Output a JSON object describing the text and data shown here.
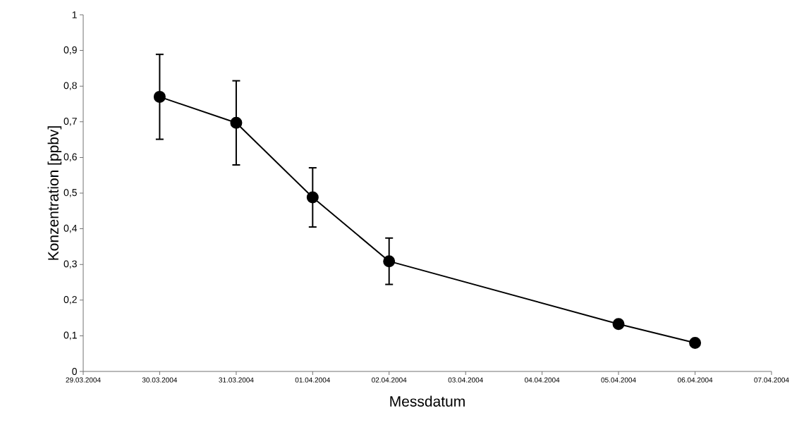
{
  "chart_data": {
    "type": "line",
    "xlabel": "Messdatum",
    "ylabel": "Konzentration [ppbv]",
    "x": [
      "2004-03-30",
      "2004-03-31",
      "2004-04-01",
      "2004-04-02",
      "2004-04-05",
      "2004-04-06"
    ],
    "values": [
      0.77,
      0.697,
      0.488,
      0.309,
      0.133,
      0.08
    ],
    "errors": [
      0.119,
      0.118,
      0.083,
      0.065,
      null,
      null
    ],
    "color": "#000000",
    "marker": "circle",
    "line_style": "solid",
    "grid": false,
    "xlim": [
      "2004-03-29",
      "2004-04-07"
    ],
    "xticks": [
      {
        "value": "2004-03-29",
        "label": "29.03.2004"
      },
      {
        "value": "2004-03-30",
        "label": "30.03.2004"
      },
      {
        "value": "2004-03-31",
        "label": "31.03.2004"
      },
      {
        "value": "2004-04-01",
        "label": "01.04.2004"
      },
      {
        "value": "2004-04-02",
        "label": "02.04.2004"
      },
      {
        "value": "2004-04-03",
        "label": "03.04.2004"
      },
      {
        "value": "2004-04-04",
        "label": "04.04.2004"
      },
      {
        "value": "2004-04-05",
        "label": "05.04.2004"
      },
      {
        "value": "2004-04-06",
        "label": "06.04.2004"
      },
      {
        "value": "2004-04-07",
        "label": "07.04.2004"
      }
    ],
    "ylim": [
      0,
      1
    ],
    "yticks": [
      0,
      {
        "value": 0.1,
        "label": "0,1"
      },
      {
        "value": 0.2,
        "label": "0,2"
      },
      {
        "value": 0.3,
        "label": "0,3"
      },
      {
        "value": 0.4,
        "label": "0,4"
      },
      {
        "value": 0.5,
        "label": "0,5"
      },
      {
        "value": 0.6,
        "label": "0,6"
      },
      {
        "value": 0.7,
        "label": "0,7"
      },
      {
        "value": 0.8,
        "label": "0,8"
      },
      {
        "value": 0.9,
        "label": "0,9"
      },
      1
    ]
  }
}
